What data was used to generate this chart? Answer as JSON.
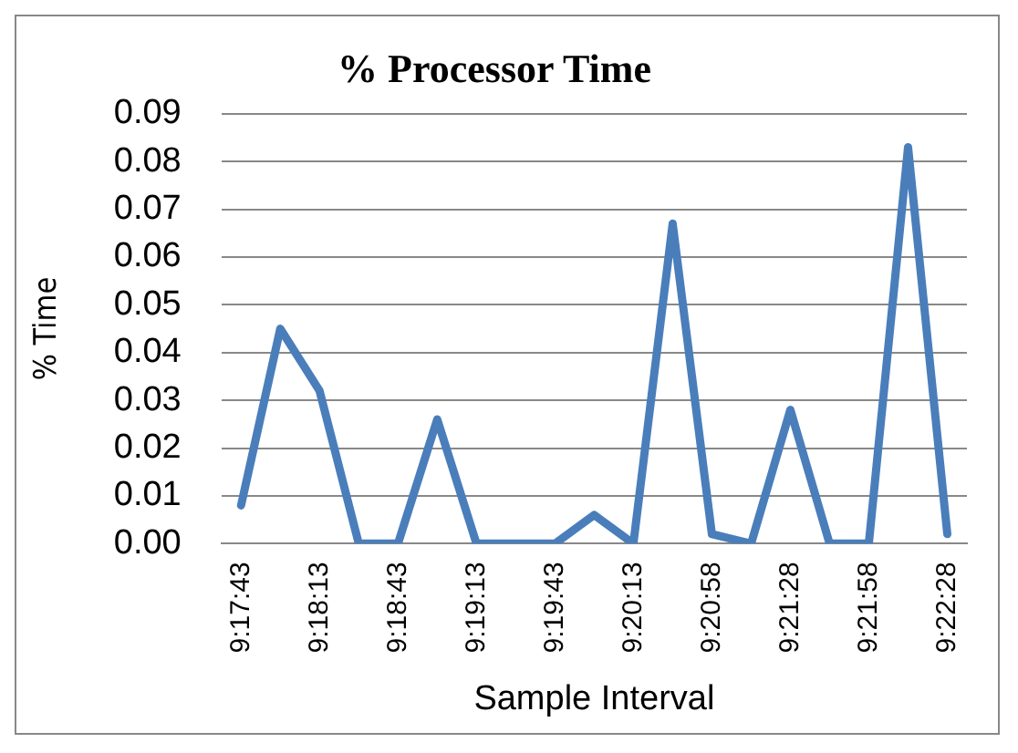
{
  "chart_data": {
    "type": "line",
    "title": "% Processor Time",
    "xlabel": "Sample Interval",
    "ylabel": "% Time",
    "categories": [
      "9:17:43",
      null,
      "9:18:13",
      null,
      "9:18:43",
      null,
      "9:19:13",
      null,
      "9:19:43",
      null,
      "9:20:13",
      null,
      "9:20:58",
      null,
      "9:21:28",
      null,
      "9:21:58",
      null,
      "9:22:28"
    ],
    "series": [
      {
        "color": "#4a7ebb",
        "values": [
          0.008,
          0.045,
          0.032,
          0,
          0,
          0.026,
          0,
          0,
          0,
          0.006,
          0,
          0.067,
          0.002,
          0,
          0.028,
          0,
          0,
          0.083,
          0.002
        ]
      }
    ],
    "ylim": [
      0,
      0.09
    ],
    "yticks": [
      {
        "value": 0,
        "label": "0.00"
      },
      {
        "value": 0.01,
        "label": "0.01"
      },
      {
        "value": 0.02,
        "label": "0.02"
      },
      {
        "value": 0.03,
        "label": "0.03"
      },
      {
        "value": 0.04,
        "label": "0.04"
      },
      {
        "value": 0.05,
        "label": "0.05"
      },
      {
        "value": 0.06,
        "label": "0.06"
      },
      {
        "value": 0.07,
        "label": "0.07"
      },
      {
        "value": 0.08,
        "label": "0.08"
      },
      {
        "value": 0.09,
        "label": "0.09"
      }
    ],
    "grid": "y",
    "marker": "none",
    "line_style": "solid",
    "legend": false
  }
}
